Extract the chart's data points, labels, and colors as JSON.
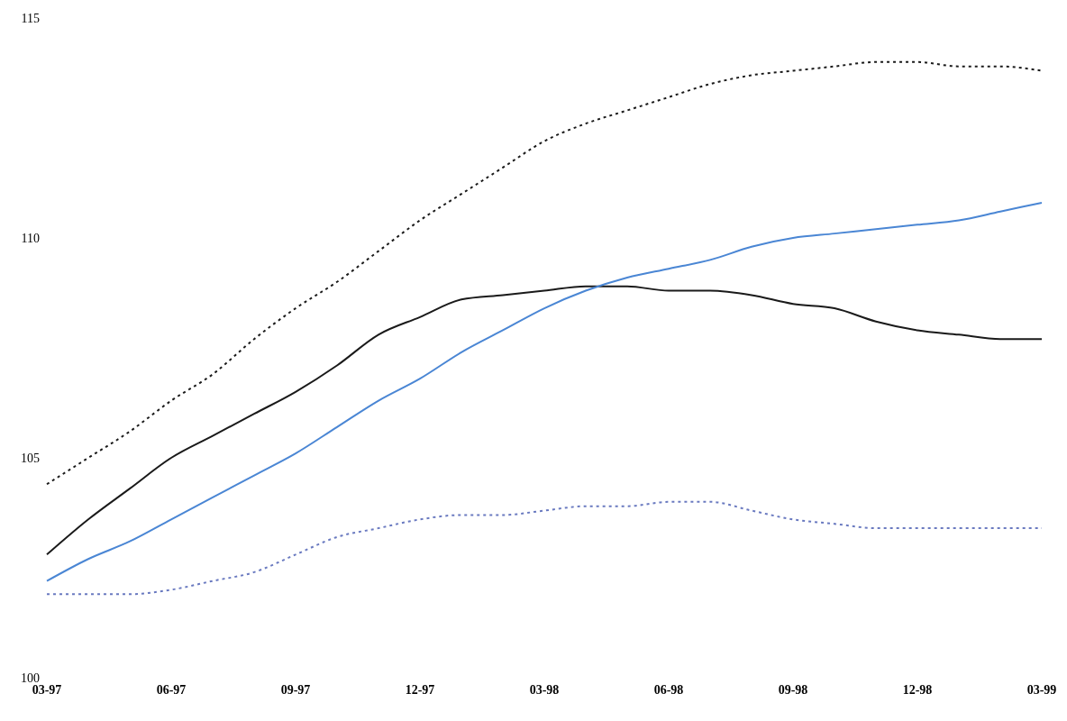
{
  "chart_data": {
    "type": "line",
    "categories": [
      "03-97",
      null,
      null,
      "06-97",
      null,
      null,
      "09-97",
      null,
      null,
      "12-97",
      null,
      null,
      "03-98",
      null,
      null,
      "06-98",
      null,
      null,
      "09-98",
      null,
      null,
      "12-98",
      null,
      null,
      "03-99"
    ],
    "series": [
      {
        "color": "#1a1a1a",
        "line_style": "dotted",
        "values": [
          104.4,
          105.0,
          105.6,
          106.3,
          106.9,
          107.7,
          108.4,
          109.0,
          109.7,
          110.4,
          111.0,
          111.6,
          112.2,
          112.6,
          112.9,
          113.2,
          113.5,
          113.7,
          113.8,
          113.9,
          114.0,
          114.0,
          113.9,
          113.9,
          113.8
        ]
      },
      {
        "color": "#1a1a1a",
        "line_style": "solid",
        "values": [
          102.8,
          103.6,
          104.3,
          105.0,
          105.5,
          106.0,
          106.5,
          107.1,
          107.8,
          108.2,
          108.6,
          108.7,
          108.8,
          108.9,
          108.9,
          108.8,
          108.8,
          108.7,
          108.5,
          108.4,
          108.1,
          107.9,
          107.8,
          107.7,
          107.7
        ]
      },
      {
        "color": "#4a86d4",
        "line_style": "solid",
        "values": [
          102.2,
          102.7,
          103.1,
          103.6,
          104.1,
          104.6,
          105.1,
          105.7,
          106.3,
          106.8,
          107.4,
          107.9,
          108.4,
          108.8,
          109.1,
          109.3,
          109.5,
          109.8,
          110.0,
          110.1,
          110.2,
          110.3,
          110.4,
          110.6,
          110.8
        ]
      },
      {
        "color": "#6a7ac0",
        "line_style": "dotted",
        "values": [
          101.9,
          101.9,
          101.9,
          102.0,
          102.2,
          102.4,
          102.8,
          103.2,
          103.4,
          103.6,
          103.7,
          103.7,
          103.8,
          103.9,
          103.9,
          104.0,
          104.0,
          103.8,
          103.6,
          103.5,
          103.4,
          103.4,
          103.4,
          103.4,
          103.4
        ]
      }
    ],
    "ylim": [
      100,
      115
    ],
    "yticks": [
      100,
      105,
      110,
      115
    ],
    "grid": false,
    "legend": false,
    "marker": "none"
  }
}
